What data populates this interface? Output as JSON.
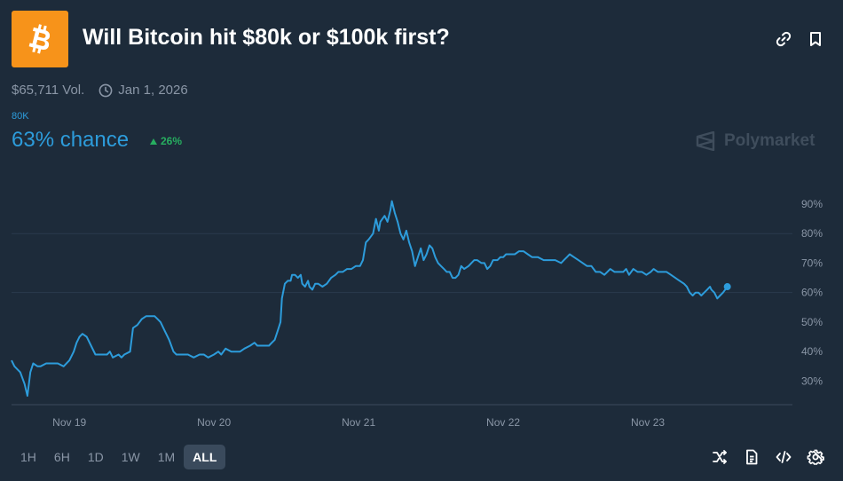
{
  "market": {
    "title": "Will Bitcoin hit $80k or $100k first?",
    "volume": "$65,711 Vol.",
    "end_date": "Jan 1, 2026",
    "outcome_label": "80K",
    "chance_text": "63% chance",
    "change_text": "26%",
    "brand": "Polymarket"
  },
  "icons": {
    "logo": "bitcoin-icon",
    "link": "link-icon",
    "bookmark": "bookmark-icon",
    "clock": "clock-icon",
    "tools": [
      "shuffle-icon",
      "document-icon",
      "code-icon",
      "gear-icon"
    ]
  },
  "colors": {
    "background": "#1d2b3a",
    "accent": "#2d9cdb",
    "positive": "#27ae60",
    "logo": "#f7931a"
  },
  "ranges": [
    {
      "label": "1H",
      "active": false
    },
    {
      "label": "6H",
      "active": false
    },
    {
      "label": "1D",
      "active": false
    },
    {
      "label": "1W",
      "active": false
    },
    {
      "label": "1M",
      "active": false
    },
    {
      "label": "ALL",
      "active": true
    }
  ],
  "chart_data": {
    "type": "line",
    "x_tick_labels": [
      "Nov 19",
      "Nov 20",
      "Nov 21",
      "Nov 22",
      "Nov 23"
    ],
    "y_tick_labels": [
      "90%",
      "80%",
      "70%",
      "60%",
      "50%",
      "40%",
      "30%"
    ],
    "y_ticks": [
      90,
      80,
      70,
      60,
      50,
      40,
      30
    ],
    "ylim": [
      22,
      96
    ],
    "xlim": [
      18.6,
      24.0
    ],
    "gridlines": [
      80,
      60
    ],
    "series": [
      {
        "color": "#2d9cdb",
        "points": [
          [
            18.6,
            37
          ],
          [
            18.62,
            35
          ],
          [
            18.66,
            33
          ],
          [
            18.69,
            29
          ],
          [
            18.71,
            25
          ],
          [
            18.73,
            33
          ],
          [
            18.75,
            36
          ],
          [
            18.78,
            35
          ],
          [
            18.8,
            35
          ],
          [
            18.84,
            36
          ],
          [
            18.88,
            36
          ],
          [
            18.92,
            36
          ],
          [
            18.96,
            35
          ],
          [
            19.0,
            37
          ],
          [
            19.03,
            40
          ],
          [
            19.05,
            43
          ],
          [
            19.07,
            45
          ],
          [
            19.09,
            46
          ],
          [
            19.12,
            45
          ],
          [
            19.15,
            42
          ],
          [
            19.18,
            39
          ],
          [
            19.22,
            39
          ],
          [
            19.26,
            39
          ],
          [
            19.28,
            40
          ],
          [
            19.3,
            38
          ],
          [
            19.34,
            39
          ],
          [
            19.36,
            38
          ],
          [
            19.38,
            39
          ],
          [
            19.42,
            40
          ],
          [
            19.44,
            48
          ],
          [
            19.47,
            49
          ],
          [
            19.5,
            51
          ],
          [
            19.53,
            52
          ],
          [
            19.56,
            52
          ],
          [
            19.59,
            52
          ],
          [
            19.61,
            51
          ],
          [
            19.63,
            50
          ],
          [
            19.66,
            47
          ],
          [
            19.69,
            44
          ],
          [
            19.72,
            40
          ],
          [
            19.74,
            39
          ],
          [
            19.78,
            39
          ],
          [
            19.82,
            39
          ],
          [
            19.86,
            38
          ],
          [
            19.9,
            39
          ],
          [
            19.93,
            39
          ],
          [
            19.96,
            38
          ],
          [
            20.0,
            39
          ],
          [
            20.03,
            40
          ],
          [
            20.05,
            39
          ],
          [
            20.08,
            41
          ],
          [
            20.12,
            40
          ],
          [
            20.15,
            40
          ],
          [
            20.18,
            40
          ],
          [
            20.21,
            41
          ],
          [
            20.25,
            42
          ],
          [
            20.28,
            43
          ],
          [
            20.3,
            42
          ],
          [
            20.34,
            42
          ],
          [
            20.38,
            42
          ],
          [
            20.4,
            43
          ],
          [
            20.42,
            44
          ],
          [
            20.44,
            47
          ],
          [
            20.46,
            50
          ],
          [
            20.47,
            58
          ],
          [
            20.49,
            63
          ],
          [
            20.51,
            64
          ],
          [
            20.53,
            64
          ],
          [
            20.54,
            66
          ],
          [
            20.56,
            66
          ],
          [
            20.58,
            65
          ],
          [
            20.6,
            66
          ],
          [
            20.61,
            63
          ],
          [
            20.63,
            62
          ],
          [
            20.65,
            64
          ],
          [
            20.66,
            62
          ],
          [
            20.68,
            61
          ],
          [
            20.7,
            63
          ],
          [
            20.72,
            63
          ],
          [
            20.75,
            62
          ],
          [
            20.78,
            63
          ],
          [
            20.81,
            65
          ],
          [
            20.84,
            66
          ],
          [
            20.86,
            67
          ],
          [
            20.89,
            67
          ],
          [
            20.92,
            68
          ],
          [
            20.95,
            68
          ],
          [
            20.98,
            69
          ],
          [
            21.01,
            69
          ],
          [
            21.03,
            71
          ],
          [
            21.05,
            77
          ],
          [
            21.07,
            78
          ],
          [
            21.1,
            80
          ],
          [
            21.12,
            85
          ],
          [
            21.14,
            81
          ],
          [
            21.15,
            84
          ],
          [
            21.18,
            86
          ],
          [
            21.2,
            84
          ],
          [
            21.22,
            88
          ],
          [
            21.23,
            91
          ],
          [
            21.25,
            87
          ],
          [
            21.27,
            84
          ],
          [
            21.29,
            80
          ],
          [
            21.31,
            78
          ],
          [
            21.33,
            81
          ],
          [
            21.35,
            77
          ],
          [
            21.37,
            74
          ],
          [
            21.39,
            69
          ],
          [
            21.41,
            72
          ],
          [
            21.43,
            75
          ],
          [
            21.45,
            71
          ],
          [
            21.47,
            73
          ],
          [
            21.49,
            76
          ],
          [
            21.51,
            75
          ],
          [
            21.53,
            72
          ],
          [
            21.55,
            70
          ],
          [
            21.57,
            69
          ],
          [
            21.59,
            68
          ],
          [
            21.61,
            67
          ],
          [
            21.63,
            67
          ],
          [
            21.65,
            65
          ],
          [
            21.67,
            65
          ],
          [
            21.69,
            66
          ],
          [
            21.71,
            69
          ],
          [
            21.73,
            68
          ],
          [
            21.76,
            69
          ],
          [
            21.78,
            70
          ],
          [
            21.8,
            71
          ],
          [
            21.82,
            71
          ],
          [
            21.85,
            70
          ],
          [
            21.87,
            70
          ],
          [
            21.89,
            68
          ],
          [
            21.91,
            69
          ],
          [
            21.93,
            71
          ],
          [
            21.96,
            71
          ],
          [
            21.98,
            72
          ],
          [
            22.0,
            72
          ],
          [
            22.02,
            73
          ],
          [
            22.05,
            73
          ],
          [
            22.08,
            73
          ],
          [
            22.11,
            74
          ],
          [
            22.14,
            74
          ],
          [
            22.17,
            73
          ],
          [
            22.2,
            72
          ],
          [
            22.24,
            72
          ],
          [
            22.28,
            71
          ],
          [
            22.32,
            71
          ],
          [
            22.36,
            71
          ],
          [
            22.4,
            70
          ],
          [
            22.42,
            71
          ],
          [
            22.44,
            72
          ],
          [
            22.46,
            73
          ],
          [
            22.49,
            72
          ],
          [
            22.52,
            71
          ],
          [
            22.55,
            70
          ],
          [
            22.58,
            69
          ],
          [
            22.61,
            69
          ],
          [
            22.64,
            67
          ],
          [
            22.67,
            67
          ],
          [
            22.7,
            66
          ],
          [
            22.72,
            67
          ],
          [
            22.74,
            68
          ],
          [
            22.77,
            67
          ],
          [
            22.8,
            67
          ],
          [
            22.83,
            67
          ],
          [
            22.85,
            68
          ],
          [
            22.87,
            66
          ],
          [
            22.9,
            68
          ],
          [
            22.93,
            67
          ],
          [
            22.96,
            67
          ],
          [
            22.99,
            66
          ],
          [
            23.02,
            67
          ],
          [
            23.04,
            68
          ],
          [
            23.07,
            67
          ],
          [
            23.1,
            67
          ],
          [
            23.13,
            67
          ],
          [
            23.16,
            66
          ],
          [
            23.19,
            65
          ],
          [
            23.22,
            64
          ],
          [
            23.25,
            63
          ],
          [
            23.27,
            62
          ],
          [
            23.29,
            60
          ],
          [
            23.31,
            59
          ],
          [
            23.33,
            60
          ],
          [
            23.35,
            60
          ],
          [
            23.37,
            59
          ],
          [
            23.39,
            60
          ],
          [
            23.41,
            61
          ],
          [
            23.43,
            62
          ],
          [
            23.44,
            61
          ],
          [
            23.46,
            60
          ],
          [
            23.48,
            58
          ],
          [
            23.5,
            59
          ],
          [
            23.52,
            60
          ],
          [
            23.55,
            62
          ]
        ]
      }
    ],
    "grid": true
  }
}
